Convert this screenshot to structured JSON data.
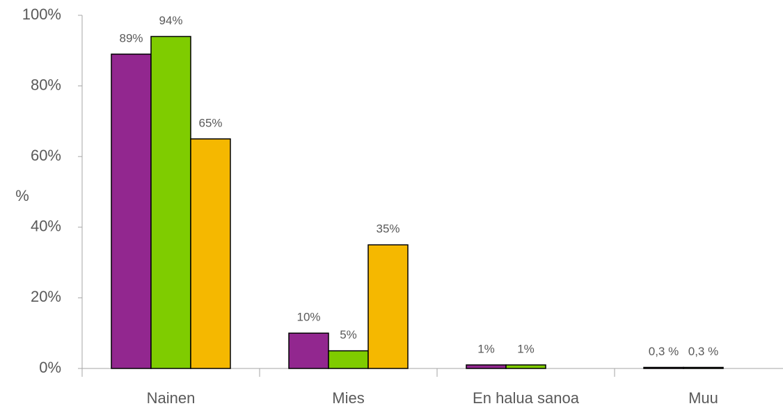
{
  "chart_data": {
    "type": "bar",
    "y_label": "%",
    "categories": [
      "Nainen",
      "Mies",
      "En halua sanoa",
      "Muu"
    ],
    "series": [
      {
        "color": "#92278f",
        "values": [
          89,
          10,
          1,
          0.3
        ],
        "value_labels": [
          "89%",
          "10%",
          "1%",
          "0,3 %"
        ]
      },
      {
        "color": "#7fcc00",
        "values": [
          94,
          5,
          1,
          0.3
        ],
        "value_labels": [
          "94%",
          "5%",
          "1%",
          "0,3 %"
        ]
      },
      {
        "color": "#f5b800",
        "values": [
          65,
          35,
          null,
          null
        ],
        "value_labels": [
          "65%",
          "35%",
          null,
          null
        ]
      }
    ],
    "ylim": [
      0,
      100
    ],
    "yticks": [
      {
        "value": 0,
        "label": "0%"
      },
      {
        "value": 20,
        "label": "20%"
      },
      {
        "value": 40,
        "label": "40%"
      },
      {
        "value": 60,
        "label": "60%"
      },
      {
        "value": 80,
        "label": "80%"
      },
      {
        "value": 100,
        "label": "100%"
      }
    ],
    "grid": false
  }
}
